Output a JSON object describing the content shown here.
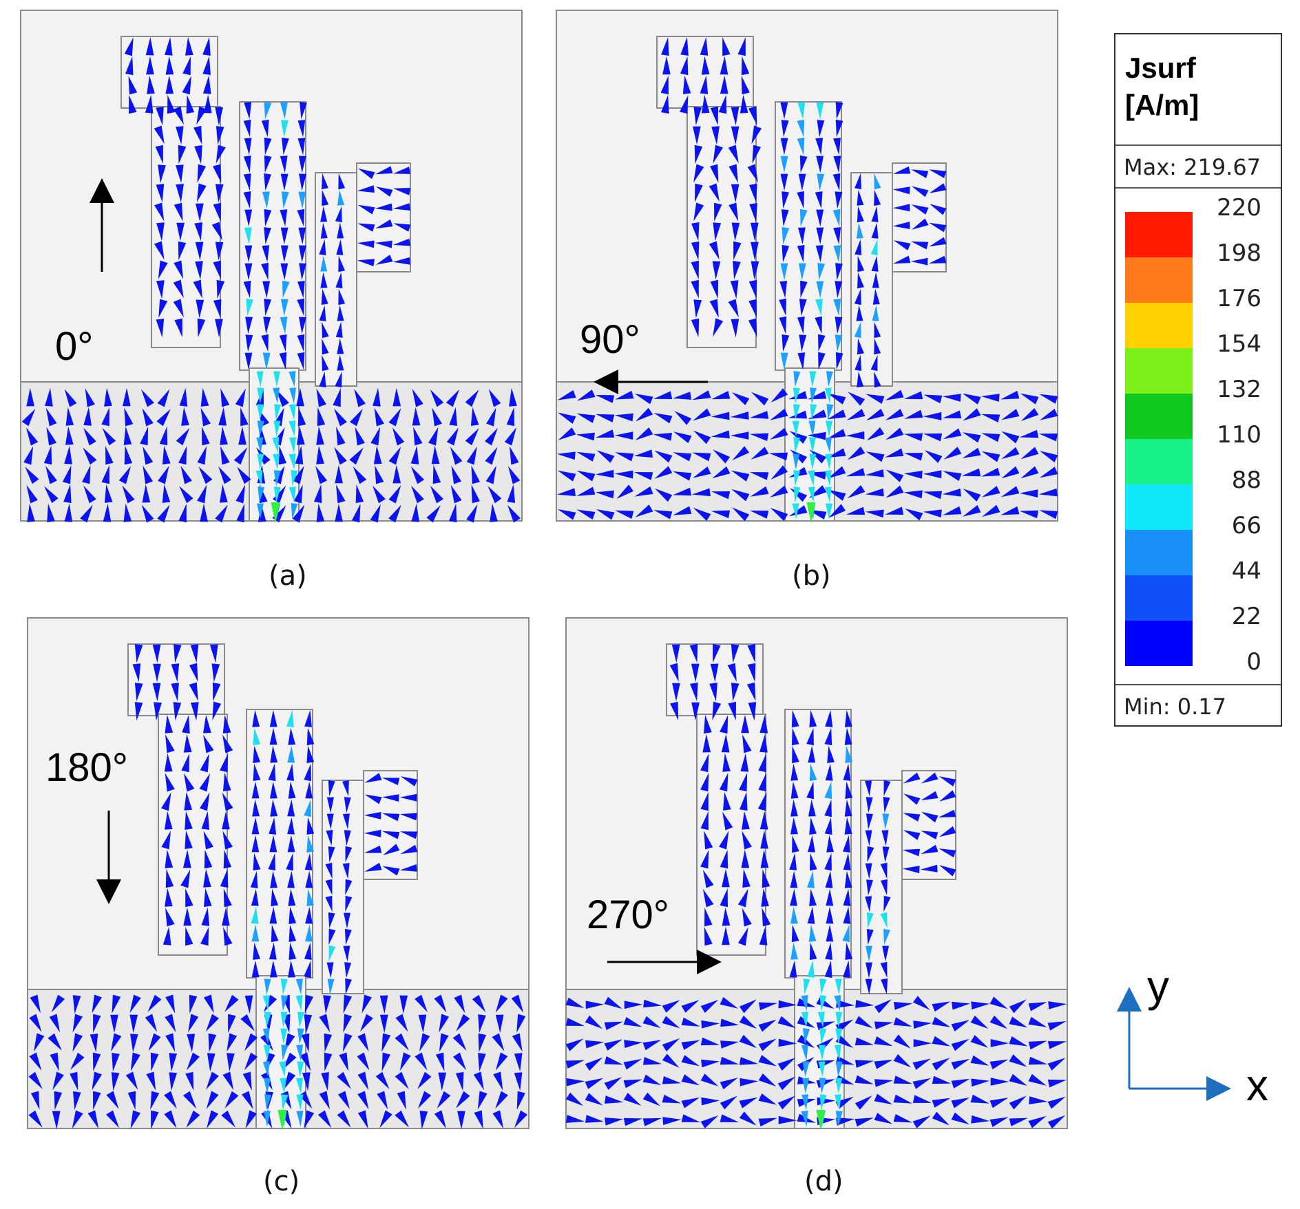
{
  "panels": [
    {
      "id": "a",
      "label": "(a)",
      "angle": "0°",
      "direction": "up"
    },
    {
      "id": "b",
      "label": "(b)",
      "angle": "90°",
      "direction": "left"
    },
    {
      "id": "c",
      "label": "(c)",
      "angle": "180°",
      "direction": "down"
    },
    {
      "id": "d",
      "label": "(d)",
      "angle": "270°",
      "direction": "right"
    }
  ],
  "legend": {
    "title_line1": "Jsurf",
    "title_line2": "[A/m]",
    "max": "Max: 219.67",
    "min": "Min: 0.17",
    "ticks": [
      "220",
      "198",
      "176",
      "154",
      "132",
      "110",
      "88",
      "66",
      "44",
      "22",
      "0"
    ],
    "colors": [
      "#ff1a00",
      "#ff7a1a",
      "#ffd200",
      "#7cf01a",
      "#10c820",
      "#18f088",
      "#10e8f8",
      "#1890f8",
      "#1050f8",
      "#0000ff"
    ]
  },
  "axes": {
    "x_label": "x",
    "y_label": "y",
    "color": "#1f6fc0"
  },
  "colors": {
    "arrow_low": "#0b14ee",
    "arrow_mid": "#1ea0ff",
    "arrow_high": "#20e0f0",
    "arrow_peak": "#30f040",
    "patch_fill": "#f2f2f2",
    "patch_stroke": "#8a8a8a"
  }
}
